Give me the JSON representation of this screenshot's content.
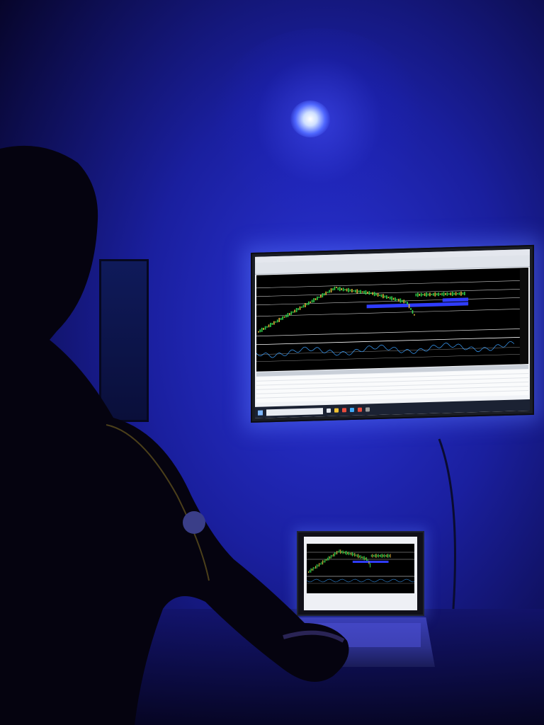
{
  "scene": {
    "colors": {
      "wall": "#1a1f9e",
      "wall_shadow": "#0a0628",
      "glow": "#3c45ff",
      "chart_background": "#000000",
      "uptrend_candles": "#2fd14a",
      "downtrend_candles": "#e0b43a",
      "zone_highlight": "#2f3cff",
      "indicator_line": "#3aa0ff"
    },
    "objects": {
      "lamp": "ceiling-light-icon",
      "monitor": "wall-mounted-monitor",
      "laptop": "laptop",
      "person": "trader-silhouette"
    }
  }
}
